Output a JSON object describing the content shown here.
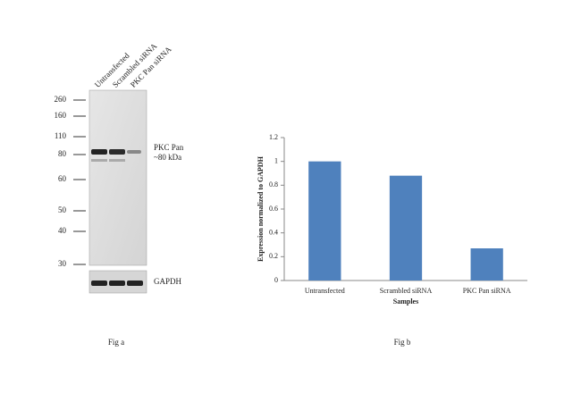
{
  "blot": {
    "lanes": [
      "Untransfected",
      "Scrambled siRNA",
      "PKC Pan siRNA"
    ],
    "markers": [
      260,
      160,
      110,
      80,
      60,
      50,
      40,
      30
    ],
    "band_label": "PKC Pan",
    "band_size": "~80 kDa",
    "loading_label": "GAPDH",
    "caption": "Fig a"
  },
  "chart_data": {
    "type": "bar",
    "caption": "Fig b",
    "categories": [
      "Untransfected",
      "Scrambled siRNA",
      "PKC Pan siRNA"
    ],
    "values": [
      1.0,
      0.88,
      0.27
    ],
    "color": "#4f81bd",
    "ylabel": "Expression normalized to GAPDH",
    "xlabel": "Samples",
    "ylim": [
      0,
      1.2
    ],
    "yticks": [
      0,
      0.2,
      0.4,
      0.6,
      0.8,
      1,
      1.2
    ]
  }
}
